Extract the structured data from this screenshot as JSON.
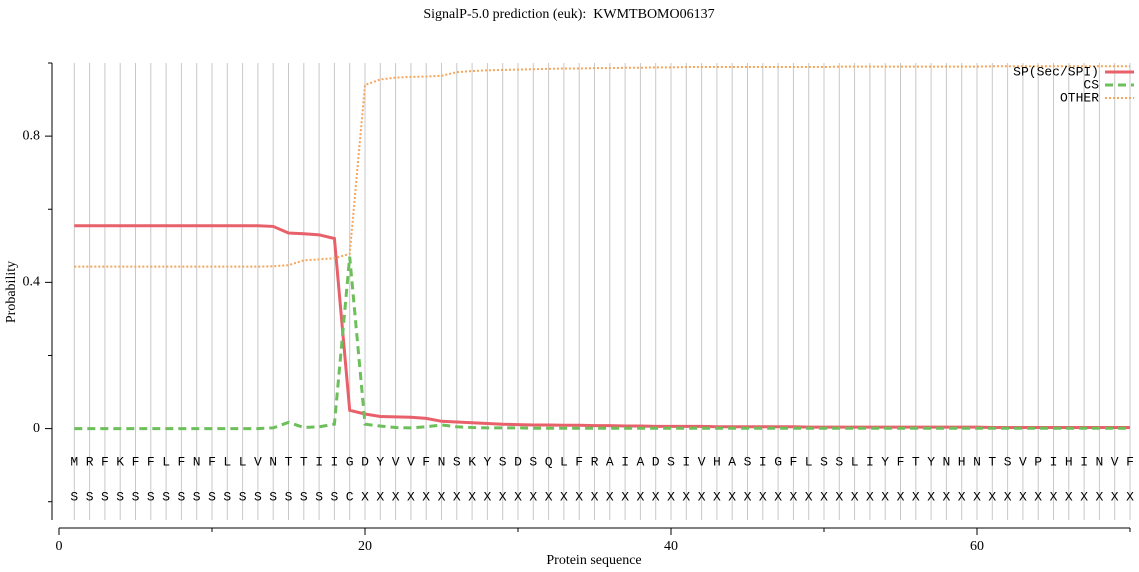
{
  "chart_data": {
    "type": "line",
    "title": "SignalP-5.0 prediction (euk):  KWMTBOMO06137",
    "xlabel": "Protein sequence",
    "ylabel": "Probability",
    "xlim": [
      0,
      70
    ],
    "ylim": [
      -0.25,
      1
    ],
    "xticks": [
      0,
      20,
      40,
      60
    ],
    "xminor": [
      10,
      30,
      50,
      70
    ],
    "yticks": [
      0,
      0.4,
      0.8
    ],
    "yminor": [
      -0.2,
      0.2,
      0.6,
      1
    ],
    "grid": true,
    "legend": "upper right",
    "x": [
      1,
      2,
      3,
      4,
      5,
      6,
      7,
      8,
      9,
      10,
      11,
      12,
      13,
      14,
      15,
      16,
      17,
      18,
      19,
      20,
      21,
      22,
      23,
      24,
      25,
      26,
      27,
      28,
      29,
      30,
      31,
      32,
      33,
      34,
      35,
      36,
      37,
      38,
      39,
      40,
      41,
      42,
      43,
      44,
      45,
      46,
      47,
      48,
      49,
      50,
      51,
      52,
      53,
      54,
      55,
      56,
      57,
      58,
      59,
      60,
      61,
      62,
      63,
      64,
      65,
      66,
      67,
      68,
      69,
      70
    ],
    "sequence": [
      "M",
      "R",
      "F",
      "K",
      "F",
      "F",
      "L",
      "F",
      "N",
      "F",
      "L",
      "L",
      "V",
      "N",
      "T",
      "T",
      "I",
      "I",
      "G",
      "D",
      "Y",
      "V",
      "V",
      "F",
      "N",
      "S",
      "K",
      "Y",
      "S",
      "D",
      "S",
      "Q",
      "L",
      "F",
      "R",
      "A",
      "I",
      "A",
      "D",
      "S",
      "I",
      "V",
      "H",
      "A",
      "S",
      "I",
      "G",
      "F",
      "L",
      "S",
      "S",
      "L",
      "I",
      "Y",
      "F",
      "T",
      "Y",
      "N",
      "H",
      "N",
      "T",
      "S",
      "V",
      "P",
      "I",
      "H",
      "I",
      "N",
      "V",
      "F"
    ],
    "labels": [
      "S",
      "S",
      "S",
      "S",
      "S",
      "S",
      "S",
      "S",
      "S",
      "S",
      "S",
      "S",
      "S",
      "S",
      "S",
      "S",
      "S",
      "S",
      "C",
      "X",
      "X",
      "X",
      "X",
      "X",
      "X",
      "X",
      "X",
      "X",
      "X",
      "X",
      "X",
      "X",
      "X",
      "X",
      "X",
      "X",
      "X",
      "X",
      "X",
      "X",
      "X",
      "X",
      "X",
      "X",
      "X",
      "X",
      "X",
      "X",
      "X",
      "X",
      "X",
      "X",
      "X",
      "X",
      "X",
      "X",
      "X",
      "X",
      "X",
      "X",
      "X",
      "X",
      "X",
      "X",
      "X",
      "X",
      "X",
      "X",
      "X",
      "X"
    ],
    "series": [
      {
        "name": "SP(Sec/SPI)",
        "color": "#e8606a",
        "linestyle": "solid",
        "values": [
          0.555,
          0.555,
          0.555,
          0.555,
          0.555,
          0.555,
          0.555,
          0.555,
          0.555,
          0.555,
          0.555,
          0.555,
          0.555,
          0.553,
          0.535,
          0.533,
          0.53,
          0.52,
          0.05,
          0.04,
          0.033,
          0.032,
          0.031,
          0.028,
          0.02,
          0.018,
          0.016,
          0.014,
          0.012,
          0.011,
          0.01,
          0.01,
          0.009,
          0.009,
          0.008,
          0.008,
          0.007,
          0.007,
          0.006,
          0.006,
          0.006,
          0.006,
          0.005,
          0.005,
          0.005,
          0.005,
          0.005,
          0.005,
          0.004,
          0.004,
          0.004,
          0.004,
          0.004,
          0.004,
          0.004,
          0.004,
          0.004,
          0.004,
          0.004,
          0.004,
          0.003,
          0.003,
          0.003,
          0.003,
          0.003,
          0.003,
          0.003,
          0.003,
          0.003,
          0.003
        ]
      },
      {
        "name": "CS",
        "color": "#6dbf5b",
        "linestyle": "dashed",
        "values": [
          0,
          0,
          0,
          0,
          0,
          0,
          0,
          0,
          0,
          0,
          0,
          0,
          0,
          0.002,
          0.017,
          0.003,
          0.005,
          0.012,
          0.47,
          0.012,
          0.007,
          0.003,
          0.002,
          0.005,
          0.01,
          0.005,
          0.003,
          0.002,
          0.002,
          0.002,
          0.001,
          0.001,
          0.001,
          0.001,
          0.001,
          0.001,
          0.001,
          0.001,
          0.001,
          0.001,
          0.001,
          0.001,
          0.001,
          0.001,
          0.001,
          0.001,
          0.001,
          0.001,
          0.001,
          0.001,
          0.001,
          0.001,
          0.001,
          0.001,
          0.001,
          0.001,
          0.001,
          0.001,
          0.001,
          0.001,
          0.001,
          0.001,
          0.001,
          0.001,
          0.001,
          0.001,
          0.001,
          0.001,
          0.001,
          0.001
        ]
      },
      {
        "name": "OTHER",
        "color": "#f5a65b",
        "linestyle": "dotted",
        "values": [
          0.443,
          0.443,
          0.443,
          0.443,
          0.443,
          0.443,
          0.443,
          0.443,
          0.443,
          0.443,
          0.443,
          0.443,
          0.443,
          0.444,
          0.447,
          0.46,
          0.463,
          0.466,
          0.478,
          0.94,
          0.955,
          0.96,
          0.962,
          0.963,
          0.965,
          0.975,
          0.978,
          0.98,
          0.981,
          0.982,
          0.983,
          0.984,
          0.985,
          0.985,
          0.986,
          0.986,
          0.987,
          0.987,
          0.988,
          0.988,
          0.989,
          0.989,
          0.989,
          0.989,
          0.989,
          0.989,
          0.989,
          0.989,
          0.989,
          0.989,
          0.99,
          0.99,
          0.99,
          0.99,
          0.99,
          0.99,
          0.99,
          0.99,
          0.99,
          0.99,
          0.991,
          0.991,
          0.991,
          0.991,
          0.991,
          0.991,
          0.991,
          0.991,
          0.991,
          0.991
        ]
      }
    ]
  }
}
